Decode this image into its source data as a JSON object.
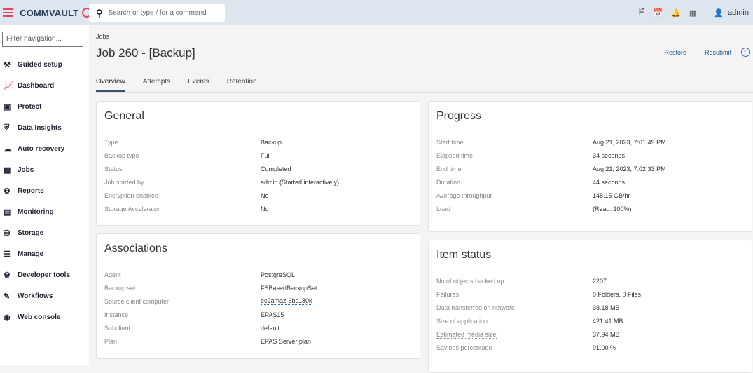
{
  "header": {
    "brand": "COMMVAULT",
    "search_placeholder": "Search or type / for a command",
    "user": "admin",
    "icons": [
      "report-icon",
      "schedule-icon",
      "bell-icon",
      "dashboard-icon",
      "user-icon"
    ]
  },
  "sidebar": {
    "filter_placeholder": "Filter navigation...",
    "items": [
      {
        "label": "Guided setup",
        "icon": "tools-icon"
      },
      {
        "label": "Dashboard",
        "icon": "dashboard-icon"
      },
      {
        "label": "Protect",
        "icon": "protect-icon"
      },
      {
        "label": "Data Insights",
        "icon": "shield-icon"
      },
      {
        "label": "Auto recovery",
        "icon": "recovery-icon"
      },
      {
        "label": "Jobs",
        "icon": "briefcase-icon"
      },
      {
        "label": "Reports",
        "icon": "reports-icon"
      },
      {
        "label": "Monitoring",
        "icon": "monitor-icon"
      },
      {
        "label": "Storage",
        "icon": "database-icon"
      },
      {
        "label": "Manage",
        "icon": "sliders-icon"
      },
      {
        "label": "Developer tools",
        "icon": "gear-icon"
      },
      {
        "label": "Workflows",
        "icon": "workflow-icon"
      },
      {
        "label": "Web console",
        "icon": "globe-icon"
      }
    ]
  },
  "page": {
    "breadcrumb": "Jobs",
    "title": "Job 260 - [Backup]",
    "actions": {
      "restore": "Restore",
      "resubmit": "Resubmit"
    },
    "tabs": [
      "Overview",
      "Attempts",
      "Events",
      "Retention"
    ]
  },
  "general": {
    "title": "General",
    "rows": [
      [
        "Type",
        "Backup"
      ],
      [
        "Backup type",
        "Full"
      ],
      [
        "Status",
        "Completed"
      ],
      [
        "Job started by",
        "admin (Started interactively)"
      ],
      [
        "Encryption enabled",
        "No"
      ],
      [
        "Storage Accelerator",
        "No"
      ]
    ]
  },
  "associations": {
    "title": "Associations",
    "rows": [
      [
        "Agent",
        "PostgreSQL"
      ],
      [
        "Backup set",
        "FSBasedBackupSet"
      ],
      [
        "Source client computer",
        "ec2amaz-6bs180k"
      ],
      [
        "Instance",
        "EPAS15"
      ],
      [
        "Subclient",
        "default"
      ],
      [
        "Plan",
        "EPAS Server plan"
      ]
    ]
  },
  "progress": {
    "title": "Progress",
    "rows": [
      [
        "Start time",
        "Aug 21, 2023, 7:01:49 PM"
      ],
      [
        "Elapsed time",
        "34 seconds"
      ],
      [
        "End time",
        "Aug 21, 2023, 7:02:33 PM"
      ],
      [
        "Duration",
        "44 seconds"
      ],
      [
        "Average throughput",
        "148.15 GB/hr"
      ],
      [
        "Load",
        "(Read: 100%)"
      ]
    ]
  },
  "item_status": {
    "title": "Item status",
    "rows": [
      [
        "No of objects backed up",
        "2207"
      ],
      [
        "Failures",
        "0 Folders, 0 Files"
      ],
      [
        "Data transferred on network",
        "38.18 MB"
      ],
      [
        "Size of application",
        "421.41 MB"
      ],
      [
        "Estimated media size",
        "37.94 MB"
      ],
      [
        "Savings percentage",
        "91.00 %"
      ]
    ]
  },
  "colors": {
    "accent": "#e8475e",
    "link": "#2b6cb0",
    "header_bg": "#dde5ef"
  }
}
